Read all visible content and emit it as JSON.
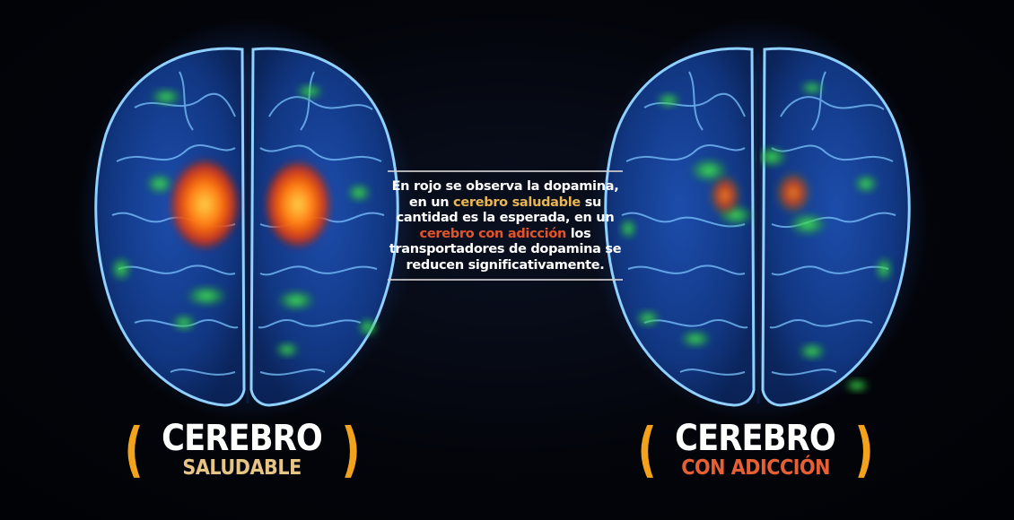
{
  "caption": {
    "part1": "En rojo se observa la dopamina, en un ",
    "highlight1": "cerebro saludable",
    "part2": " su cantidad es la esperada, en un ",
    "highlight2": "cerebro con adicción",
    "part3": " los transportadores de dopamina se reducen significativamente."
  },
  "labels": {
    "left": {
      "open": "(",
      "line1": "CEREBRO",
      "line2": "SALUDABLE",
      "close": ")"
    },
    "right": {
      "open": "(",
      "line1": "CEREBRO",
      "line2": "CON ADICCIÓN",
      "close": ")"
    }
  },
  "colors": {
    "background": "#020307",
    "brain_outline": "#6fb8ff",
    "brain_fill": "#123a8a",
    "dopamine": "#ff5a10",
    "activity_green": "#39d64a",
    "parenthesis": "#f3a21b",
    "gold_text": "#e6c584",
    "orange_text": "#e66034"
  }
}
